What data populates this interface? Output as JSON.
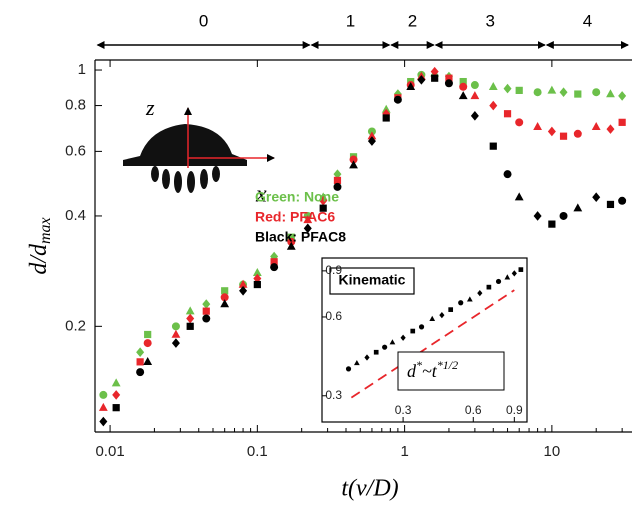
{
  "chart_data": {
    "type": "scatter",
    "x_label": "t(v/D)",
    "y_label": {
      "main": "d/d",
      "sub": "max"
    },
    "log_x": true,
    "log_y": true,
    "xlim": [
      0.0079,
      35
    ],
    "ylim": [
      0.103,
      1.065
    ],
    "xticks": [
      0.01,
      0.1,
      1,
      10
    ],
    "yticks": [
      0.2,
      0.4,
      0.6,
      0.8,
      1
    ],
    "phases": {
      "labels": [
        "0",
        "1",
        "2",
        "3",
        "4"
      ],
      "bounds": [
        0.0081,
        0.23,
        0.8,
        1.6,
        9.1,
        35
      ]
    },
    "x": [
      0.009,
      0.011,
      0.016,
      0.018,
      0.028,
      0.035,
      0.045,
      0.06,
      0.08,
      0.1,
      0.13,
      0.17,
      0.22,
      0.28,
      0.35,
      0.45,
      0.6,
      0.75,
      0.9,
      1.1,
      1.3,
      1.6,
      2,
      2.5,
      3,
      4,
      5,
      6,
      8,
      10,
      12,
      15,
      20,
      25,
      30
    ],
    "series": [
      {
        "name": "Green: None",
        "color": "#6cc04a",
        "values": [
          0.13,
          0.14,
          0.17,
          0.19,
          0.2,
          0.22,
          0.23,
          0.25,
          0.26,
          0.28,
          0.31,
          0.35,
          0.4,
          0.45,
          0.52,
          0.58,
          0.68,
          0.78,
          0.86,
          0.93,
          0.97,
          0.98,
          0.96,
          0.93,
          0.91,
          0.9,
          0.89,
          0.88,
          0.87,
          0.88,
          0.87,
          0.86,
          0.87,
          0.86,
          0.85
        ]
      },
      {
        "name": "Red: PFAC6",
        "color": "#e8262b",
        "values": [
          0.12,
          0.13,
          0.16,
          0.18,
          0.19,
          0.21,
          0.22,
          0.24,
          0.26,
          0.27,
          0.3,
          0.34,
          0.39,
          0.44,
          0.5,
          0.57,
          0.66,
          0.76,
          0.84,
          0.91,
          0.96,
          0.99,
          0.95,
          0.9,
          0.85,
          0.8,
          0.76,
          0.72,
          0.7,
          0.68,
          0.66,
          0.67,
          0.7,
          0.69,
          0.72
        ]
      },
      {
        "name": "Black: PFAC8",
        "color": "#000000",
        "values": [
          0.11,
          0.12,
          0.15,
          0.16,
          0.18,
          0.2,
          0.21,
          0.23,
          0.25,
          0.26,
          0.29,
          0.33,
          0.37,
          0.42,
          0.48,
          0.55,
          0.64,
          0.74,
          0.83,
          0.9,
          0.94,
          0.95,
          0.92,
          0.85,
          0.75,
          0.62,
          0.52,
          0.45,
          0.4,
          0.38,
          0.4,
          0.42,
          0.45,
          0.43,
          0.44
        ]
      }
    ],
    "axis_icon": {
      "z": "z",
      "x": "x"
    },
    "inset": {
      "title": "Kinematic",
      "xlim": [
        0.169,
        1.02
      ],
      "ylim": [
        0.284,
        0.973
      ],
      "xticks": [
        0.3,
        0.6,
        0.9
      ],
      "yticks": [
        0.3,
        0.6,
        0.9
      ],
      "x": [
        0.175,
        0.19,
        0.21,
        0.23,
        0.25,
        0.27,
        0.3,
        0.33,
        0.36,
        0.4,
        0.44,
        0.48,
        0.53,
        0.58,
        0.64,
        0.7,
        0.77,
        0.84,
        0.9,
        0.96
      ],
      "values": [
        0.38,
        0.4,
        0.42,
        0.44,
        0.46,
        0.48,
        0.5,
        0.53,
        0.55,
        0.59,
        0.61,
        0.64,
        0.68,
        0.7,
        0.74,
        0.78,
        0.82,
        0.85,
        0.88,
        0.91
      ],
      "color": "#000000",
      "fit_x": [
        0.18,
        0.9
      ],
      "fit_y": [
        0.295,
        0.76
      ],
      "fit_color": "#e8262b",
      "annotation": [
        "d",
        "*",
        "~t",
        "*1/2"
      ]
    }
  }
}
